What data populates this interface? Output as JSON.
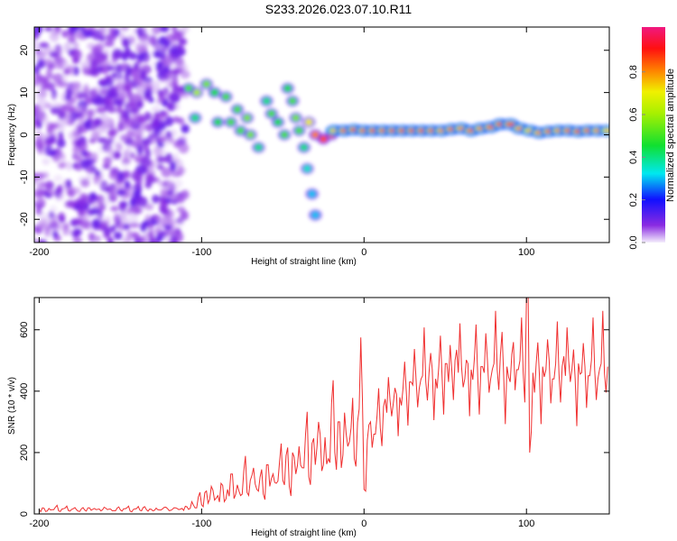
{
  "title": "S233.2026.023.07.10.R11",
  "chart_data": [
    {
      "type": "heatmap",
      "xlabel": "Height of straight line (km)",
      "ylabel": "Frequency (Hz)",
      "xlim": [
        -203,
        151
      ],
      "ylim": [
        -25.5,
        25.5
      ],
      "xticks": [
        -200,
        -100,
        0,
        100
      ],
      "yticks": [
        -20,
        -10,
        0,
        10,
        20
      ],
      "colorbar": {
        "label": "Normalized spectral amplitude",
        "range": [
          0,
          1
        ],
        "ticks": [
          "0.0",
          "0.2",
          "0.4",
          "0.6",
          "0.8"
        ]
      },
      "noise_region": {
        "x": [
          -203,
          -110
        ],
        "amplitude": 0.12
      },
      "features": [
        [
          -108,
          11,
          0.5
        ],
        [
          -103,
          10,
          0.6
        ],
        [
          -97,
          12,
          0.55
        ],
        [
          -92,
          10,
          0.45
        ],
        [
          -85,
          9,
          0.5
        ],
        [
          -78,
          6,
          0.5
        ],
        [
          -72,
          4,
          0.55
        ],
        [
          -104,
          4,
          0.4
        ],
        [
          -90,
          3,
          0.45
        ],
        [
          -82,
          3,
          0.5
        ],
        [
          -76,
          1,
          0.5
        ],
        [
          -70,
          0,
          0.55
        ],
        [
          -65,
          -3,
          0.4
        ],
        [
          -60,
          8,
          0.4
        ],
        [
          -57,
          5,
          0.5
        ],
        [
          -53,
          3,
          0.45
        ],
        [
          -49,
          0,
          0.5
        ],
        [
          -47,
          11,
          0.45
        ],
        [
          -44,
          8,
          0.5
        ],
        [
          -42,
          4,
          0.55
        ],
        [
          -40,
          1,
          0.5
        ],
        [
          -37,
          -3,
          0.4
        ],
        [
          -35,
          -8,
          0.35
        ],
        [
          -32,
          -14,
          0.3
        ],
        [
          -30,
          -19,
          0.3
        ],
        [
          -34,
          3,
          0.7
        ],
        [
          -30,
          0,
          0.8
        ],
        [
          -25,
          -1,
          0.85
        ],
        [
          -20,
          0,
          0.8
        ]
      ],
      "ridge": [
        [
          -18,
          1,
          0.75
        ],
        [
          -12,
          1,
          0.85
        ],
        [
          -6,
          1.2,
          0.9
        ],
        [
          0,
          1,
          0.85
        ],
        [
          6,
          1,
          0.9
        ],
        [
          12,
          1,
          0.85
        ],
        [
          18,
          1,
          0.95
        ],
        [
          24,
          1,
          0.9
        ],
        [
          30,
          1,
          0.92
        ],
        [
          36,
          1,
          0.9
        ],
        [
          42,
          1,
          0.85
        ],
        [
          48,
          1,
          0.8
        ],
        [
          54,
          1.3,
          0.85
        ],
        [
          60,
          1.5,
          0.8
        ],
        [
          66,
          1,
          0.85
        ],
        [
          72,
          1.5,
          0.8
        ],
        [
          78,
          1.8,
          0.85
        ],
        [
          84,
          2.5,
          0.9
        ],
        [
          90,
          2.5,
          0.9
        ],
        [
          96,
          1.5,
          0.8
        ],
        [
          102,
          1,
          0.75
        ],
        [
          108,
          0.5,
          0.8
        ],
        [
          114,
          0.8,
          0.85
        ],
        [
          120,
          1,
          0.8
        ],
        [
          126,
          1,
          0.85
        ],
        [
          132,
          0.8,
          0.9
        ],
        [
          138,
          1,
          0.85
        ],
        [
          144,
          1,
          0.8
        ],
        [
          150,
          1,
          0.75
        ]
      ]
    },
    {
      "type": "line",
      "xlabel": "Height of straight line (km)",
      "ylabel": "SNR (10 * v/v)",
      "xlim": [
        -203,
        151
      ],
      "ylim": [
        0,
        705
      ],
      "xticks": [
        -200,
        -100,
        0,
        100
      ],
      "yticks": [
        0,
        200,
        400,
        600
      ],
      "x_start": -200,
      "x_step": 2,
      "color": "#f03030",
      "values": [
        12,
        20,
        8,
        18,
        14,
        22,
        10,
        16,
        19,
        11,
        15,
        21,
        9,
        17,
        13,
        20,
        12,
        18,
        15,
        10,
        22,
        14,
        16,
        11,
        19,
        13,
        17,
        20,
        9,
        15,
        18,
        12,
        21,
        14,
        16,
        10,
        19,
        13,
        17,
        22,
        11,
        15,
        20,
        14,
        18,
        25,
        15,
        40,
        20,
        55,
        30,
        70,
        35,
        90,
        45,
        60,
        100,
        40,
        80,
        130,
        50,
        95,
        60,
        140,
        70,
        110,
        150,
        80,
        120,
        65,
        160,
        90,
        130,
        100,
        170,
        110,
        190,
        90,
        200,
        130,
        220,
        150,
        260,
        120,
        230,
        160,
        300,
        140,
        250,
        180,
        360,
        200,
        300,
        150,
        330,
        220,
        280,
        180,
        300,
        575,
        80,
        240,
        300,
        260,
        320,
        280,
        350,
        330,
        370,
        360,
        390,
        380,
        410,
        400,
        430,
        420,
        440,
        410,
        450,
        430,
        460,
        470,
        440,
        480,
        450,
        490,
        430,
        470,
        500,
        460,
        480,
        440,
        490,
        470,
        510,
        450,
        480,
        460,
        500,
        440,
        490,
        470,
        520,
        450,
        480,
        430,
        560,
        470,
        500,
        460,
        700,
        200,
        460,
        490,
        450,
        480,
        470,
        500,
        440,
        490,
        460,
        480,
        450,
        500,
        470,
        440,
        490,
        460,
        480,
        450,
        500,
        470,
        440,
        490,
        460,
        480
      ]
    }
  ]
}
